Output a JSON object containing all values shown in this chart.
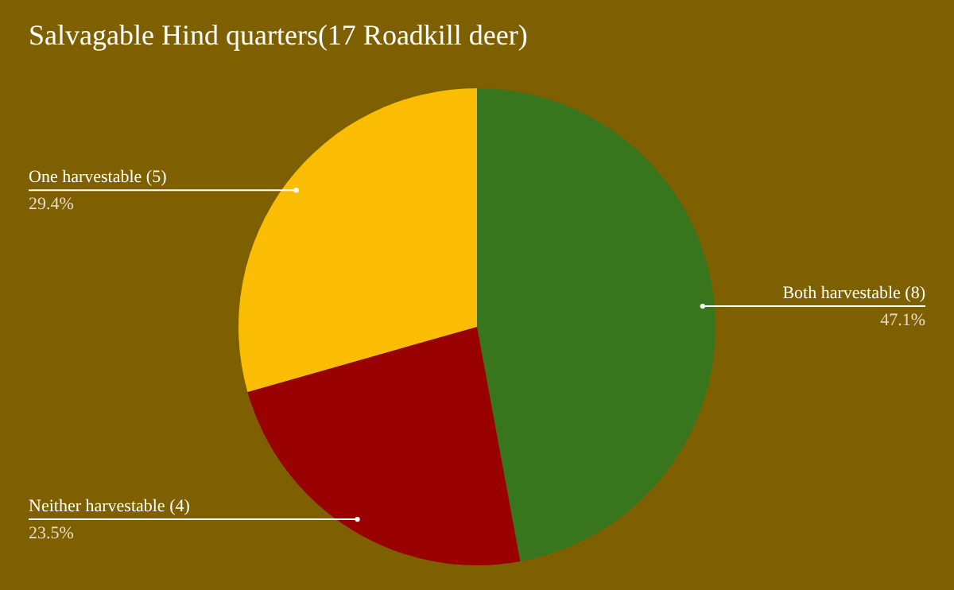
{
  "chart_data": {
    "type": "pie",
    "title": "Salvagable Hind quarters(17 Roadkill deer)",
    "categories": [
      "Both harvestable (8)",
      "Neither harvestable (4)",
      "One harvestable (5)"
    ],
    "values": [
      47.1,
      23.5,
      29.4
    ],
    "value_labels": [
      "47.1%",
      "23.5%",
      "29.4%"
    ],
    "colors": [
      "#38761d",
      "#990000",
      "#fbbc04"
    ],
    "legend": false
  }
}
